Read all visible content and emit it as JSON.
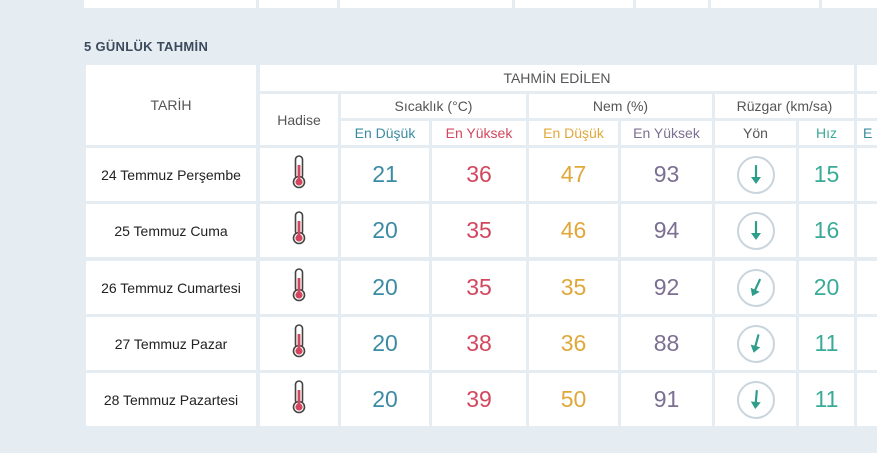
{
  "section_title": "5 GÜNLÜK TAHMİN",
  "headers": {
    "date": "TARİH",
    "forecast": "TAHMİN EDİLEN",
    "event": "Hadise",
    "temperature": "Sıcaklık (°C)",
    "humidity": "Nem (%)",
    "wind": "Rüzgar (km/sa)",
    "temp_min": "En Düşük",
    "temp_max": "En Yüksek",
    "hum_min": "En Düşük",
    "hum_max": "En Yüksek",
    "wind_dir": "Yön",
    "wind_speed": "Hız",
    "partial": "E"
  },
  "rows": [
    {
      "date": "24 Temmuz Perşembe",
      "icon": "thermometer-hot-icon",
      "temp_min": "21",
      "temp_max": "36",
      "hum_min": "47",
      "hum_max": "93",
      "wind_dir_deg": 180,
      "wind_speed": "15"
    },
    {
      "date": "25 Temmuz Cuma",
      "icon": "thermometer-hot-icon",
      "temp_min": "20",
      "temp_max": "35",
      "hum_min": "46",
      "hum_max": "94",
      "wind_dir_deg": 180,
      "wind_speed": "16"
    },
    {
      "date": "26 Temmuz Cumartesi",
      "icon": "thermometer-hot-icon",
      "temp_min": "20",
      "temp_max": "35",
      "hum_min": "35",
      "hum_max": "92",
      "wind_dir_deg": 205,
      "wind_speed": "20"
    },
    {
      "date": "27 Temmuz Pazar",
      "icon": "thermometer-hot-icon",
      "temp_min": "20",
      "temp_max": "38",
      "hum_min": "36",
      "hum_max": "88",
      "wind_dir_deg": 195,
      "wind_speed": "11"
    },
    {
      "date": "28 Temmuz Pazartesi",
      "icon": "thermometer-hot-icon",
      "temp_min": "20",
      "temp_max": "39",
      "hum_min": "50",
      "hum_max": "91",
      "wind_dir_deg": 185,
      "wind_speed": "11"
    }
  ],
  "colors": {
    "temp_min": "#3a8ba3",
    "temp_max": "#d2475e",
    "hum_min": "#e0a83a",
    "hum_max": "#7b6f92",
    "wind_speed": "#3aab97",
    "wind_arrow": "#2e9e8a",
    "thermometer": "#d2475e"
  }
}
